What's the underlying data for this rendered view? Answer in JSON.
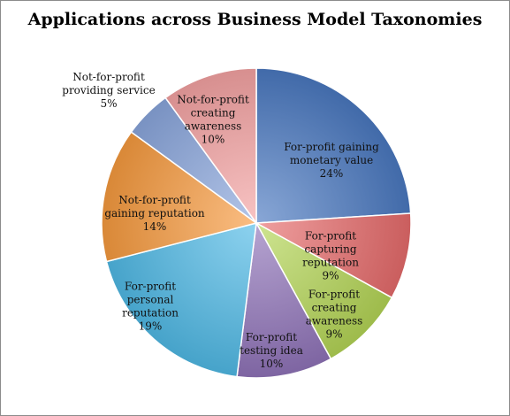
{
  "chart_data": {
    "type": "pie",
    "title": "Applications across Business Model Taxonomies",
    "slices": [
      {
        "label_lines": [
          "For-profit gaining",
          "monetary value",
          "24%"
        ],
        "value": 24,
        "color": "#4a78c0"
      },
      {
        "label_lines": [
          "For-profit",
          "capturing",
          "reputation",
          "9%"
        ],
        "value": 9,
        "color": "#e66b6b"
      },
      {
        "label_lines": [
          "For-profit",
          "creating",
          "awareness",
          "9%"
        ],
        "value": 9,
        "color": "#b3d555"
      },
      {
        "label_lines": [
          "For-profit",
          "testing idea",
          "10%"
        ],
        "value": 10,
        "color": "#8f73b8"
      },
      {
        "label_lines": [
          "For-profit",
          "personal",
          "reputation",
          "19%"
        ],
        "value": 19,
        "color": "#4fb9e6"
      },
      {
        "label_lines": [
          "Not-for-profit",
          "gaining reputation",
          "14%"
        ],
        "value": 14,
        "color": "#f79a3e"
      },
      {
        "label_lines": [
          "Not-for-profit",
          "providing service",
          "5%"
        ],
        "value": 5,
        "color": "#8aa6dc"
      },
      {
        "label_lines": [
          "Not-for-profit",
          "creating",
          "awareness",
          "10%"
        ],
        "value": 10,
        "color": "#f4a3a3"
      }
    ]
  }
}
